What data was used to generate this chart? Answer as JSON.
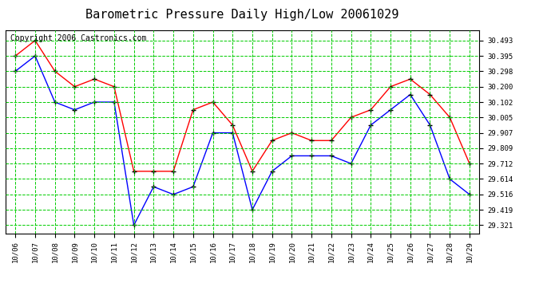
{
  "title": "Barometric Pressure Daily High/Low 20061029",
  "copyright": "Copyright 2006 Castronics.com",
  "x_labels": [
    "10/06",
    "10/07",
    "10/08",
    "10/09",
    "10/10",
    "10/11",
    "10/12",
    "10/13",
    "10/14",
    "10/15",
    "10/16",
    "10/17",
    "10/18",
    "10/19",
    "10/20",
    "10/21",
    "10/22",
    "10/23",
    "10/24",
    "10/25",
    "10/26",
    "10/27",
    "10/28",
    "10/29"
  ],
  "high_values": [
    30.395,
    30.493,
    30.298,
    30.2,
    30.248,
    30.2,
    29.663,
    29.663,
    29.663,
    30.053,
    30.102,
    29.956,
    29.663,
    29.858,
    29.907,
    29.858,
    29.858,
    30.005,
    30.053,
    30.2,
    30.248,
    30.15,
    30.005,
    29.712
  ],
  "low_values": [
    30.298,
    30.395,
    30.102,
    30.053,
    30.102,
    30.102,
    29.321,
    29.565,
    29.516,
    29.565,
    29.907,
    29.907,
    29.419,
    29.663,
    29.761,
    29.761,
    29.761,
    29.712,
    29.956,
    30.053,
    30.15,
    29.956,
    29.614,
    29.516
  ],
  "high_color": "#ff0000",
  "low_color": "#0000ff",
  "grid_color": "#00cc00",
  "bg_color": "#ffffff",
  "plot_bg_color": "#ffffff",
  "title_fontsize": 11,
  "copyright_fontsize": 7,
  "y_ticks": [
    29.321,
    29.419,
    29.516,
    29.614,
    29.712,
    29.809,
    29.907,
    30.005,
    30.102,
    30.2,
    30.298,
    30.395,
    30.493
  ],
  "y_min": 29.27,
  "y_max": 30.56
}
